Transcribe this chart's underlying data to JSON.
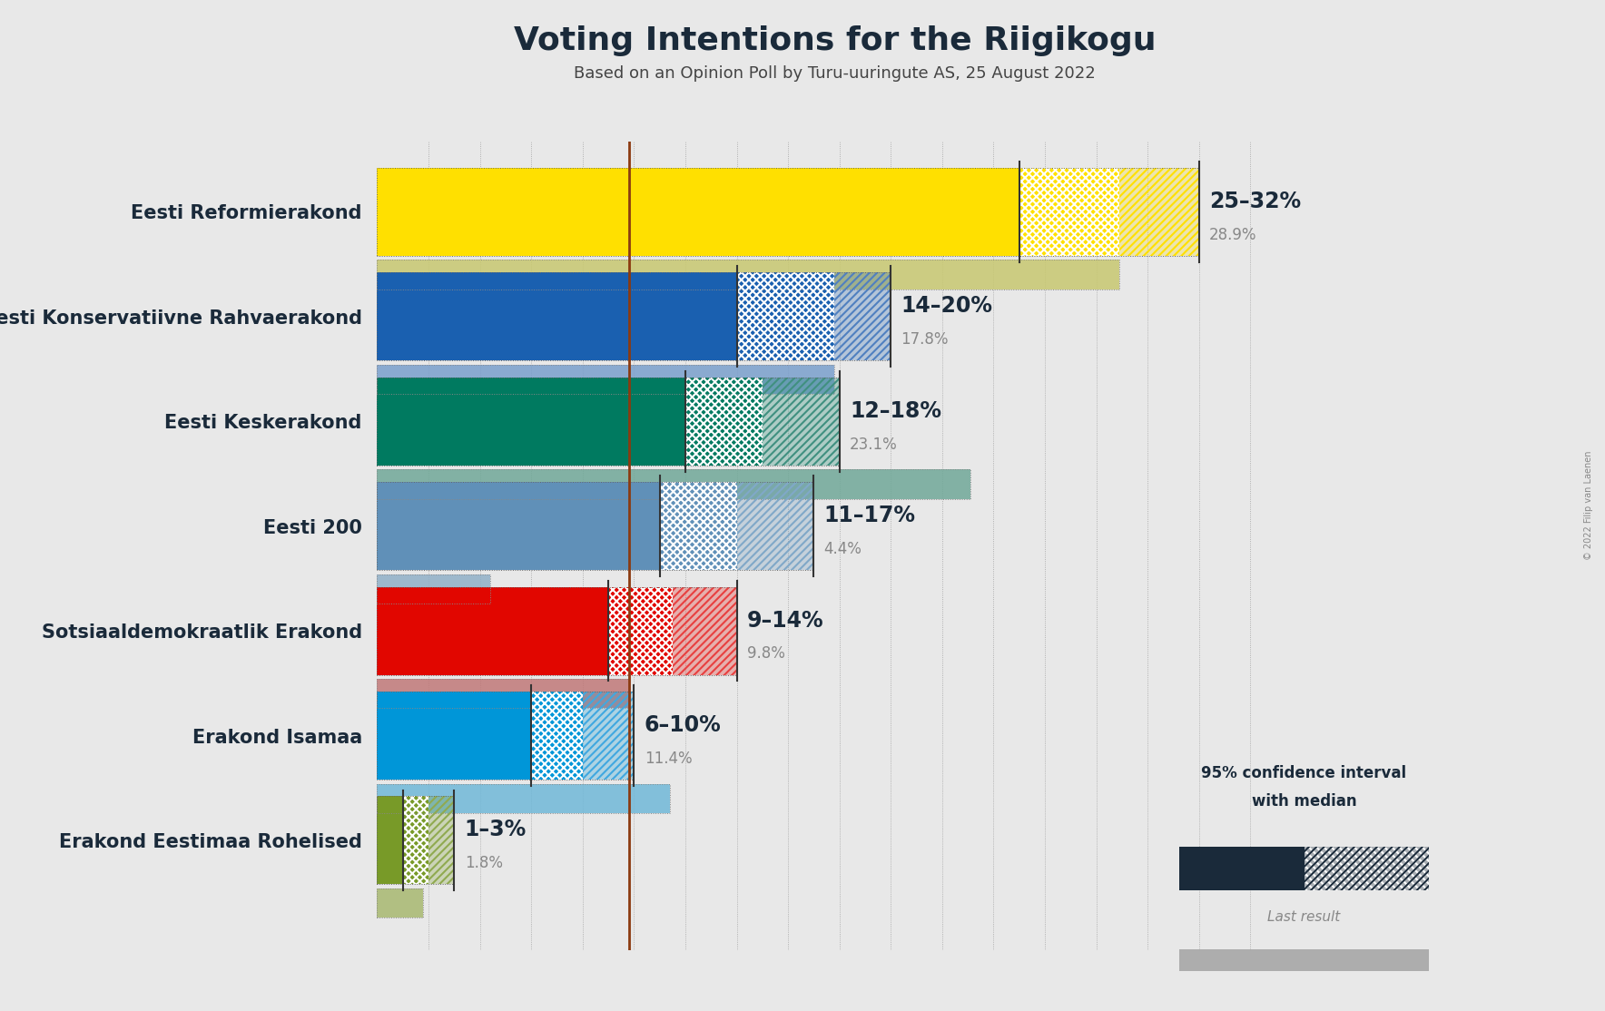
{
  "title": "Voting Intentions for the Riigikogu",
  "subtitle": "Based on an Opinion Poll by Turu-uuringute AS, 25 August 2022",
  "copyright": "© 2022 Filip van Laenen",
  "background_color": "#e8e8e8",
  "parties": [
    {
      "name": "Eesti Reformierakond",
      "ci_low": 25,
      "ci_high": 32,
      "median": 28.9,
      "last_result": 28.9,
      "color": "#FFE000",
      "last_color": "#c8c870",
      "hatch_color": "#FFE000",
      "label": "25–32%",
      "label2": "28.9%"
    },
    {
      "name": "Eesti Konservatiivne Rahvaerakond",
      "ci_low": 14,
      "ci_high": 20,
      "median": 17.8,
      "last_result": 17.8,
      "color": "#1a60b0",
      "last_color": "#7a9fcc",
      "hatch_color": "#5080c0",
      "label": "14–20%",
      "label2": "17.8%"
    },
    {
      "name": "Eesti Keskerakond",
      "ci_low": 12,
      "ci_high": 18,
      "median": 15.0,
      "last_result": 23.1,
      "color": "#007A60",
      "last_color": "#70a898",
      "hatch_color": "#409080",
      "label": "12–18%",
      "label2": "23.1%"
    },
    {
      "name": "Eesti 200",
      "ci_low": 11,
      "ci_high": 17,
      "median": 14.0,
      "last_result": 4.4,
      "color": "#6090b8",
      "last_color": "#90b0c8",
      "hatch_color": "#80a8c8",
      "label": "11–17%",
      "label2": "4.4%"
    },
    {
      "name": "Sotsiaaldemokraatlik Erakond",
      "ci_low": 9,
      "ci_high": 14,
      "median": 11.5,
      "last_result": 9.8,
      "color": "#E10600",
      "last_color": "#c07878",
      "hatch_color": "#e84040",
      "label": "9–14%",
      "label2": "9.8%"
    },
    {
      "name": "Erakond Isamaa",
      "ci_low": 6,
      "ci_high": 10,
      "median": 8.0,
      "last_result": 11.4,
      "color": "#0096D8",
      "last_color": "#70b8d8",
      "hatch_color": "#40a8e0",
      "label": "6–10%",
      "label2": "11.4%"
    },
    {
      "name": "Erakond Eestimaa Rohelised",
      "ci_low": 1,
      "ci_high": 3,
      "median": 2.0,
      "last_result": 1.8,
      "color": "#789A28",
      "last_color": "#a8b870",
      "hatch_color": "#90aa50",
      "label": "1–3%",
      "label2": "1.8%"
    }
  ],
  "xmax": 35,
  "ref_line_x": 9.8,
  "ref_line_color": "#8B3A10",
  "title_fontsize": 26,
  "subtitle_fontsize": 13,
  "label_fontsize": 17,
  "sublabel_fontsize": 12,
  "party_fontsize": 15
}
